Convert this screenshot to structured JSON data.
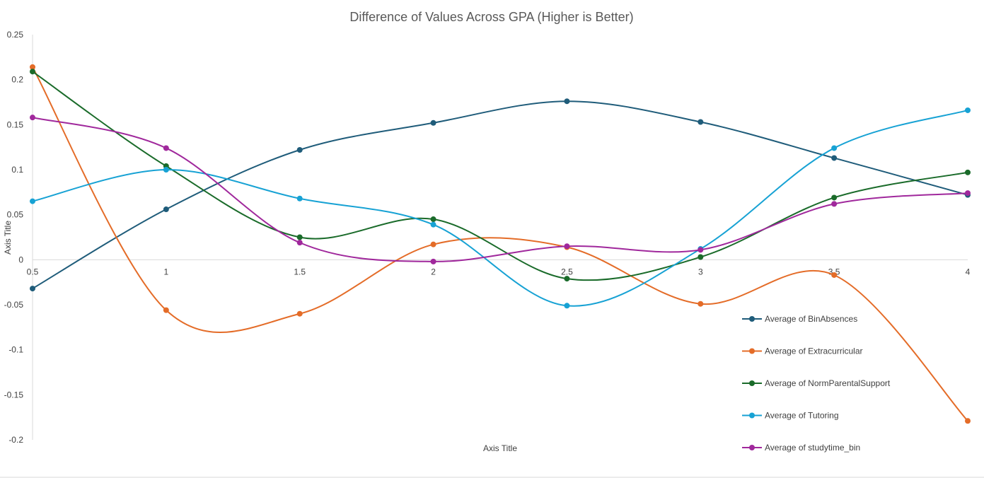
{
  "chart_data": {
    "type": "line",
    "title": "Difference of Values Across GPA  (Higher is Better)",
    "xlabel": "Axis Title",
    "ylabel": "Axis Title",
    "xlim": [
      0.5,
      4
    ],
    "ylim": [
      -0.2,
      0.25
    ],
    "x_ticks": [
      "0.5",
      "1",
      "1.5",
      "2",
      "2.5",
      "3",
      "3.5",
      "4"
    ],
    "y_ticks": [
      "0.25",
      "0.2",
      "0.15",
      "0.1",
      "0.05",
      "0",
      "-0.05",
      "-0.1",
      "-0.15",
      "-0.2"
    ],
    "grid": false,
    "smooth": true,
    "legend_position": "right",
    "x": [
      0.5,
      1,
      1.5,
      2,
      2.5,
      3,
      3.5,
      4
    ],
    "series": [
      {
        "name": "Average of BinAbsences",
        "color": "#1f5c7a",
        "values": [
          -0.032,
          0.056,
          0.122,
          0.152,
          0.176,
          0.153,
          0.113,
          0.072
        ]
      },
      {
        "name": "Average of Extracurricular",
        "color": "#e46c28",
        "values": [
          0.214,
          -0.056,
          -0.06,
          0.017,
          0.014,
          -0.049,
          -0.017,
          -0.179
        ]
      },
      {
        "name": "Average of NormParentalSupport",
        "color": "#1a6b2a",
        "values": [
          0.209,
          0.104,
          0.025,
          0.045,
          -0.021,
          0.003,
          0.069,
          0.097
        ]
      },
      {
        "name": "Average of Tutoring",
        "color": "#17a2d4",
        "values": [
          0.065,
          0.1,
          0.068,
          0.039,
          -0.051,
          0.012,
          0.124,
          0.166
        ]
      },
      {
        "name": "Average of studytime_bin",
        "color": "#a0289c",
        "values": [
          0.158,
          0.124,
          0.019,
          -0.002,
          0.015,
          0.011,
          0.062,
          0.074
        ]
      }
    ]
  }
}
